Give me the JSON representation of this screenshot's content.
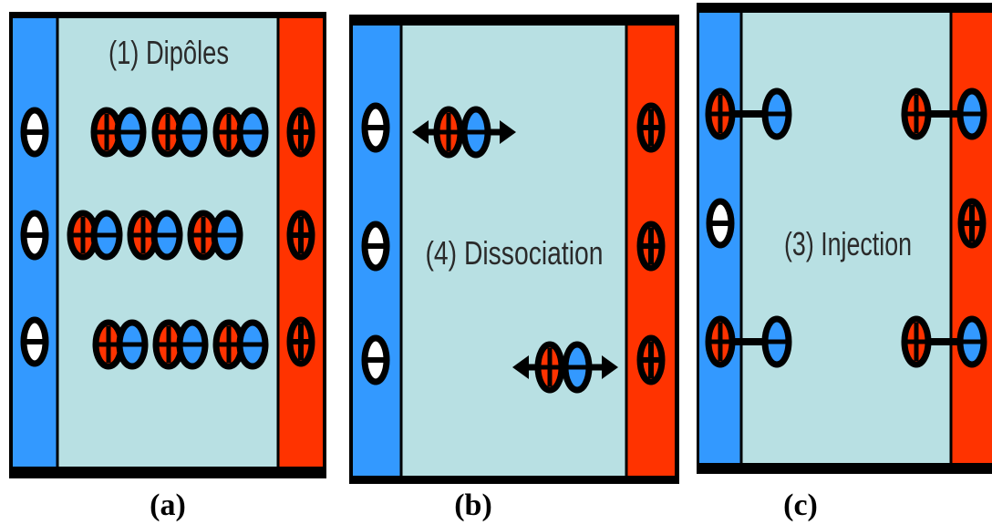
{
  "colors": {
    "negative_electrode": "#3399ff",
    "positive_electrode": "#ff3300",
    "bulk": "#b8e0e3",
    "outline": "#000000"
  },
  "panels": [
    {
      "id": "a",
      "caption": "(a)",
      "process_label": "(1) Dipôles",
      "electrode_left": "negative",
      "electrode_right": "positive",
      "left_charge_symbol": "minus",
      "right_charge_symbol": "plus"
    },
    {
      "id": "b",
      "caption": "(b)",
      "process_label": "(4) Dissociation",
      "electrode_left": "negative",
      "electrode_right": "positive",
      "left_charge_symbol": "minus",
      "right_charge_symbol": "plus"
    },
    {
      "id": "c",
      "caption": "(c)",
      "process_label": "(3) Injection",
      "electrode_left": "negative",
      "electrode_right": "positive",
      "left_charge_symbol": "minus",
      "right_charge_symbol": "plus"
    }
  ]
}
